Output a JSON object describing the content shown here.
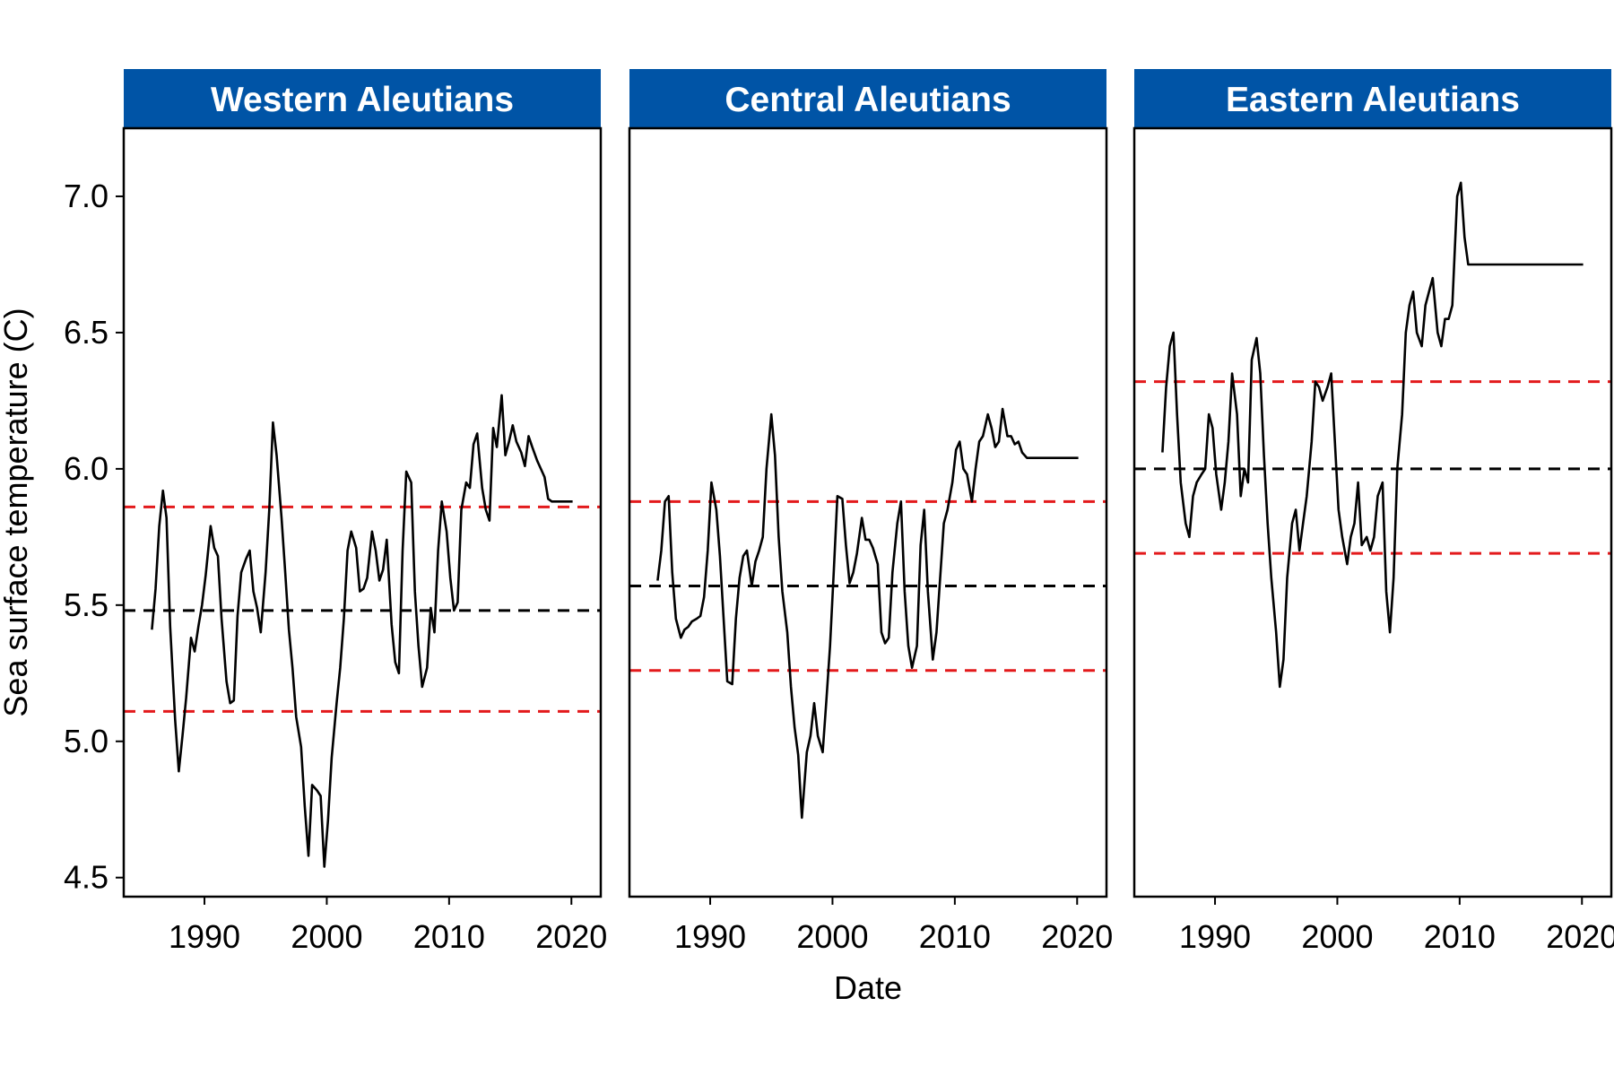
{
  "chart_data": {
    "type": "line",
    "xlabel": "Date",
    "ylabel": "Sea surface temperature (C)",
    "ylim": [
      4.43,
      7.25
    ],
    "xlim": [
      1983.4,
      2022.4
    ],
    "yticks": [
      "4.5",
      "5.0",
      "5.5",
      "6.0",
      "6.5",
      "7.0"
    ],
    "xticks": [
      "1990",
      "2000",
      "2010",
      "2020"
    ],
    "grid": false,
    "colors": {
      "strip": "#0054A6",
      "line": "#000000",
      "mean": "#000000",
      "sd": "#E31A1C"
    },
    "panels": [
      {
        "name": "Western Aleutians",
        "mean": 5.48,
        "lower": 5.11,
        "upper": 5.86,
        "x": [
          1985.7,
          1986.0,
          1986.3,
          1986.6,
          1986.9,
          1987.2,
          1987.6,
          1987.9,
          1988.2,
          1988.5,
          1988.9,
          1989.2,
          1989.5,
          1989.8,
          1990.1,
          1990.5,
          1990.8,
          1991.1,
          1991.4,
          1991.8,
          1992.1,
          1992.4,
          1992.7,
          1993.0,
          1993.4,
          1993.7,
          1994.0,
          1994.3,
          1994.6,
          1995.0,
          1995.3,
          1995.6,
          1995.9,
          1996.3,
          1996.6,
          1996.9,
          1997.2,
          1997.5,
          1997.9,
          1998.2,
          1998.5,
          1998.8,
          1999.2,
          1999.5,
          1999.8,
          2000.1,
          2000.4,
          2000.8,
          2001.1,
          2001.4,
          2001.7,
          2002.0,
          2002.4,
          2002.7,
          2003.0,
          2003.3,
          2003.7,
          2004.0,
          2004.3,
          2004.6,
          2004.9,
          2005.3,
          2005.6,
          2005.9,
          2006.2,
          2006.5,
          2006.9,
          2007.2,
          2007.5,
          2007.8,
          2008.2,
          2008.5,
          2008.8,
          2009.1,
          2009.4,
          2009.8,
          2010.1,
          2010.4,
          2010.7,
          2011.0,
          2011.4,
          2011.7,
          2012.0,
          2012.3,
          2012.7,
          2013.0,
          2013.3,
          2013.6,
          2013.9,
          2014.3,
          2014.6,
          2014.9,
          2015.2,
          2015.5,
          2015.9,
          2016.2,
          2016.5,
          2016.8,
          2017.2,
          2017.5,
          2017.8,
          2018.1,
          2018.4,
          2018.8,
          2019.1,
          2019.4,
          2019.7,
          2020.1
        ],
        "y": [
          5.41,
          5.56,
          5.79,
          5.92,
          5.82,
          5.42,
          5.08,
          4.89,
          5.02,
          5.16,
          5.38,
          5.33,
          5.42,
          5.5,
          5.61,
          5.79,
          5.71,
          5.68,
          5.45,
          5.22,
          5.14,
          5.15,
          5.46,
          5.62,
          5.67,
          5.7,
          5.55,
          5.49,
          5.4,
          5.62,
          5.85,
          6.17,
          6.05,
          5.82,
          5.62,
          5.41,
          5.27,
          5.09,
          4.98,
          4.76,
          4.58,
          4.84,
          4.82,
          4.8,
          4.54,
          4.71,
          4.94,
          5.14,
          5.27,
          5.45,
          5.7,
          5.77,
          5.71,
          5.55,
          5.56,
          5.6,
          5.77,
          5.7,
          5.59,
          5.63,
          5.74,
          5.43,
          5.29,
          5.25,
          5.7,
          5.99,
          5.95,
          5.55,
          5.35,
          5.2,
          5.27,
          5.49,
          5.4,
          5.7,
          5.88,
          5.77,
          5.6,
          5.48,
          5.51,
          5.85,
          5.95,
          5.93,
          6.09,
          6.13,
          5.93,
          5.85,
          5.81,
          6.15,
          6.08,
          6.27,
          6.05,
          6.1,
          6.16,
          6.1,
          6.06,
          6.01,
          6.12,
          6.08,
          6.03,
          6.0,
          5.97,
          5.89,
          5.88,
          5.88,
          5.88,
          5.88,
          5.88,
          5.88
        ]
      },
      {
        "name": "Central Aleutians",
        "mean": 5.57,
        "lower": 5.26,
        "upper": 5.88,
        "x": [
          1985.7,
          1986.0,
          1986.3,
          1986.6,
          1986.9,
          1987.2,
          1987.6,
          1987.9,
          1988.2,
          1988.5,
          1988.9,
          1989.2,
          1989.5,
          1989.8,
          1990.1,
          1990.5,
          1990.8,
          1991.1,
          1991.4,
          1991.8,
          1992.1,
          1992.4,
          1992.7,
          1993.0,
          1993.4,
          1993.7,
          1994.0,
          1994.3,
          1994.6,
          1995.0,
          1995.3,
          1995.6,
          1995.9,
          1996.3,
          1996.6,
          1996.9,
          1997.2,
          1997.5,
          1997.9,
          1998.2,
          1998.5,
          1998.8,
          1999.2,
          1999.5,
          1999.8,
          2000.1,
          2000.4,
          2000.8,
          2001.1,
          2001.4,
          2001.7,
          2002.0,
          2002.4,
          2002.7,
          2003.0,
          2003.3,
          2003.7,
          2004.0,
          2004.3,
          2004.6,
          2004.9,
          2005.3,
          2005.6,
          2005.9,
          2006.2,
          2006.5,
          2006.9,
          2007.2,
          2007.5,
          2007.8,
          2008.2,
          2008.5,
          2008.8,
          2009.1,
          2009.4,
          2009.8,
          2010.1,
          2010.4,
          2010.7,
          2011.0,
          2011.4,
          2011.7,
          2012.0,
          2012.3,
          2012.7,
          2013.0,
          2013.3,
          2013.6,
          2013.9,
          2014.3,
          2014.6,
          2014.9,
          2015.2,
          2015.5,
          2015.9,
          2016.2,
          2016.5,
          2016.8,
          2017.2,
          2017.5,
          2017.8,
          2018.1,
          2018.4,
          2018.8,
          2019.1,
          2019.4,
          2019.7,
          2020.1
        ],
        "y": [
          5.59,
          5.7,
          5.88,
          5.9,
          5.62,
          5.45,
          5.38,
          5.41,
          5.42,
          5.44,
          5.45,
          5.46,
          5.53,
          5.7,
          5.95,
          5.85,
          5.68,
          5.45,
          5.22,
          5.21,
          5.45,
          5.6,
          5.68,
          5.7,
          5.57,
          5.66,
          5.7,
          5.75,
          6.0,
          6.2,
          6.05,
          5.75,
          5.55,
          5.4,
          5.2,
          5.05,
          4.95,
          4.72,
          4.96,
          5.02,
          5.14,
          5.02,
          4.96,
          5.15,
          5.35,
          5.62,
          5.9,
          5.89,
          5.72,
          5.58,
          5.62,
          5.69,
          5.82,
          5.74,
          5.74,
          5.71,
          5.65,
          5.4,
          5.36,
          5.38,
          5.62,
          5.8,
          5.88,
          5.55,
          5.35,
          5.27,
          5.35,
          5.72,
          5.85,
          5.55,
          5.3,
          5.4,
          5.6,
          5.8,
          5.85,
          5.95,
          6.07,
          6.1,
          6.0,
          5.98,
          5.88,
          6.0,
          6.1,
          6.12,
          6.2,
          6.15,
          6.08,
          6.1,
          6.22,
          6.12,
          6.12,
          6.09,
          6.1,
          6.06,
          6.04,
          6.04,
          6.04,
          6.04,
          6.04,
          6.04,
          6.04,
          6.04,
          6.04,
          6.04,
          6.04,
          6.04,
          6.04,
          6.04
        ]
      },
      {
        "name": "Eastern Aleutians",
        "mean": 6.0,
        "lower": 5.69,
        "upper": 6.32,
        "x": [
          1985.7,
          1986.0,
          1986.3,
          1986.6,
          1986.9,
          1987.2,
          1987.6,
          1987.9,
          1988.2,
          1988.5,
          1988.9,
          1989.2,
          1989.5,
          1989.8,
          1990.1,
          1990.5,
          1990.8,
          1991.1,
          1991.4,
          1991.8,
          1992.1,
          1992.4,
          1992.7,
          1993.0,
          1993.4,
          1993.7,
          1994.0,
          1994.3,
          1994.6,
          1995.0,
          1995.3,
          1995.6,
          1995.9,
          1996.3,
          1996.6,
          1996.9,
          1997.2,
          1997.5,
          1997.9,
          1998.2,
          1998.5,
          1998.8,
          1999.2,
          1999.5,
          1999.8,
          2000.1,
          2000.4,
          2000.8,
          2001.1,
          2001.4,
          2001.7,
          2002.0,
          2002.4,
          2002.7,
          2003.0,
          2003.3,
          2003.7,
          2004.0,
          2004.3,
          2004.6,
          2004.9,
          2005.3,
          2005.6,
          2005.9,
          2006.2,
          2006.5,
          2006.9,
          2007.2,
          2007.5,
          2007.8,
          2008.2,
          2008.5,
          2008.8,
          2009.1,
          2009.4,
          2009.8,
          2010.1,
          2010.4,
          2010.7,
          2011.0,
          2011.4,
          2011.7,
          2012.0,
          2012.3,
          2012.7,
          2013.0,
          2013.3,
          2013.6,
          2013.9,
          2014.3,
          2014.6,
          2014.9,
          2015.2,
          2015.5,
          2015.9,
          2016.2,
          2016.5,
          2016.8,
          2017.2,
          2017.5,
          2017.8,
          2018.1,
          2018.4,
          2018.8,
          2019.1,
          2019.4,
          2019.7,
          2020.1
        ],
        "y": [
          6.06,
          6.3,
          6.45,
          6.5,
          6.2,
          5.95,
          5.8,
          5.75,
          5.9,
          5.95,
          5.98,
          6.0,
          6.2,
          6.15,
          5.98,
          5.85,
          5.95,
          6.1,
          6.35,
          6.2,
          5.9,
          6.0,
          5.95,
          6.4,
          6.48,
          6.35,
          6.05,
          5.8,
          5.6,
          5.4,
          5.2,
          5.3,
          5.6,
          5.8,
          5.85,
          5.7,
          5.8,
          5.9,
          6.1,
          6.32,
          6.3,
          6.25,
          6.3,
          6.35,
          6.1,
          5.85,
          5.75,
          5.65,
          5.75,
          5.8,
          5.95,
          5.72,
          5.75,
          5.7,
          5.75,
          5.9,
          5.95,
          5.55,
          5.4,
          5.6,
          6.0,
          6.2,
          6.5,
          6.6,
          6.65,
          6.5,
          6.45,
          6.6,
          6.65,
          6.7,
          6.5,
          6.45,
          6.55,
          6.55,
          6.6,
          7.0,
          7.05,
          6.85,
          6.75,
          6.75,
          6.75,
          6.75,
          6.75,
          6.75,
          6.75,
          6.75,
          6.75,
          6.75,
          6.75,
          6.75,
          6.75,
          6.75,
          6.75,
          6.75,
          6.75,
          6.75,
          6.75,
          6.75,
          6.75,
          6.75,
          6.75,
          6.75,
          6.75,
          6.75,
          6.75,
          6.75,
          6.75,
          6.75
        ]
      }
    ]
  }
}
